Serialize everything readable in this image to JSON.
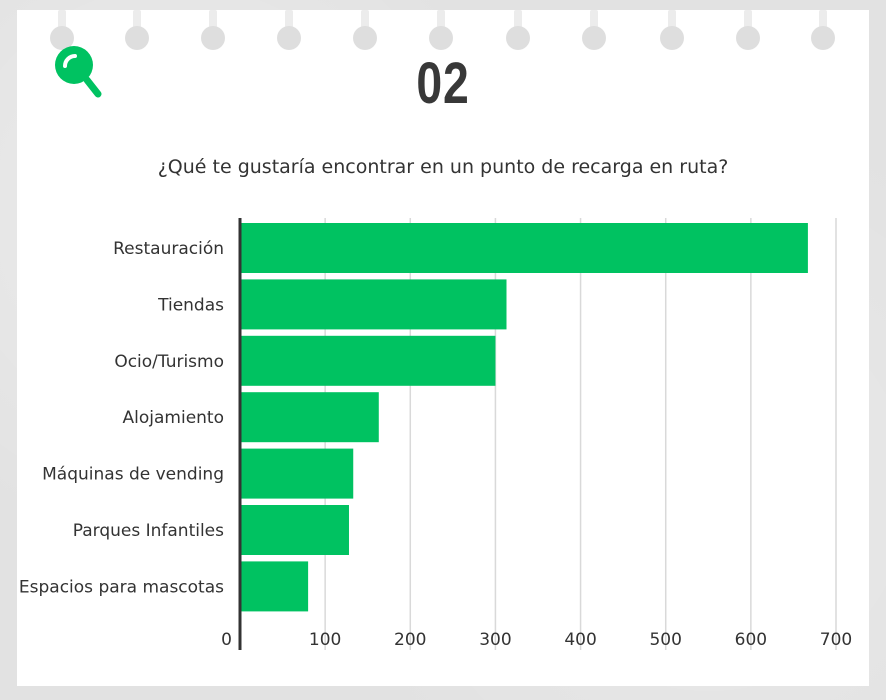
{
  "header": {
    "page_number": "02",
    "icon": "search-icon"
  },
  "colors": {
    "accent": "#00c261",
    "bar": "#00c261",
    "text": "#333333",
    "grid": "#d9d9d9",
    "axis": "#333333"
  },
  "chart_data": {
    "type": "bar",
    "orientation": "horizontal",
    "title": "¿Qué te gustaría encontrar en un punto de recarga en ruta?",
    "categories": [
      "Restauración",
      "Tiendas",
      "Ocio/Turismo",
      "Alojamiento",
      "Máquinas de vending",
      "Parques Infantiles",
      "Espacios para mascotas"
    ],
    "values": [
      667,
      313,
      300,
      163,
      133,
      128,
      80
    ],
    "xlim": [
      0,
      700
    ],
    "xticks": [
      "0",
      "100",
      "200",
      "300",
      "400",
      "500",
      "600",
      "700"
    ],
    "grid": true,
    "legend": false
  }
}
